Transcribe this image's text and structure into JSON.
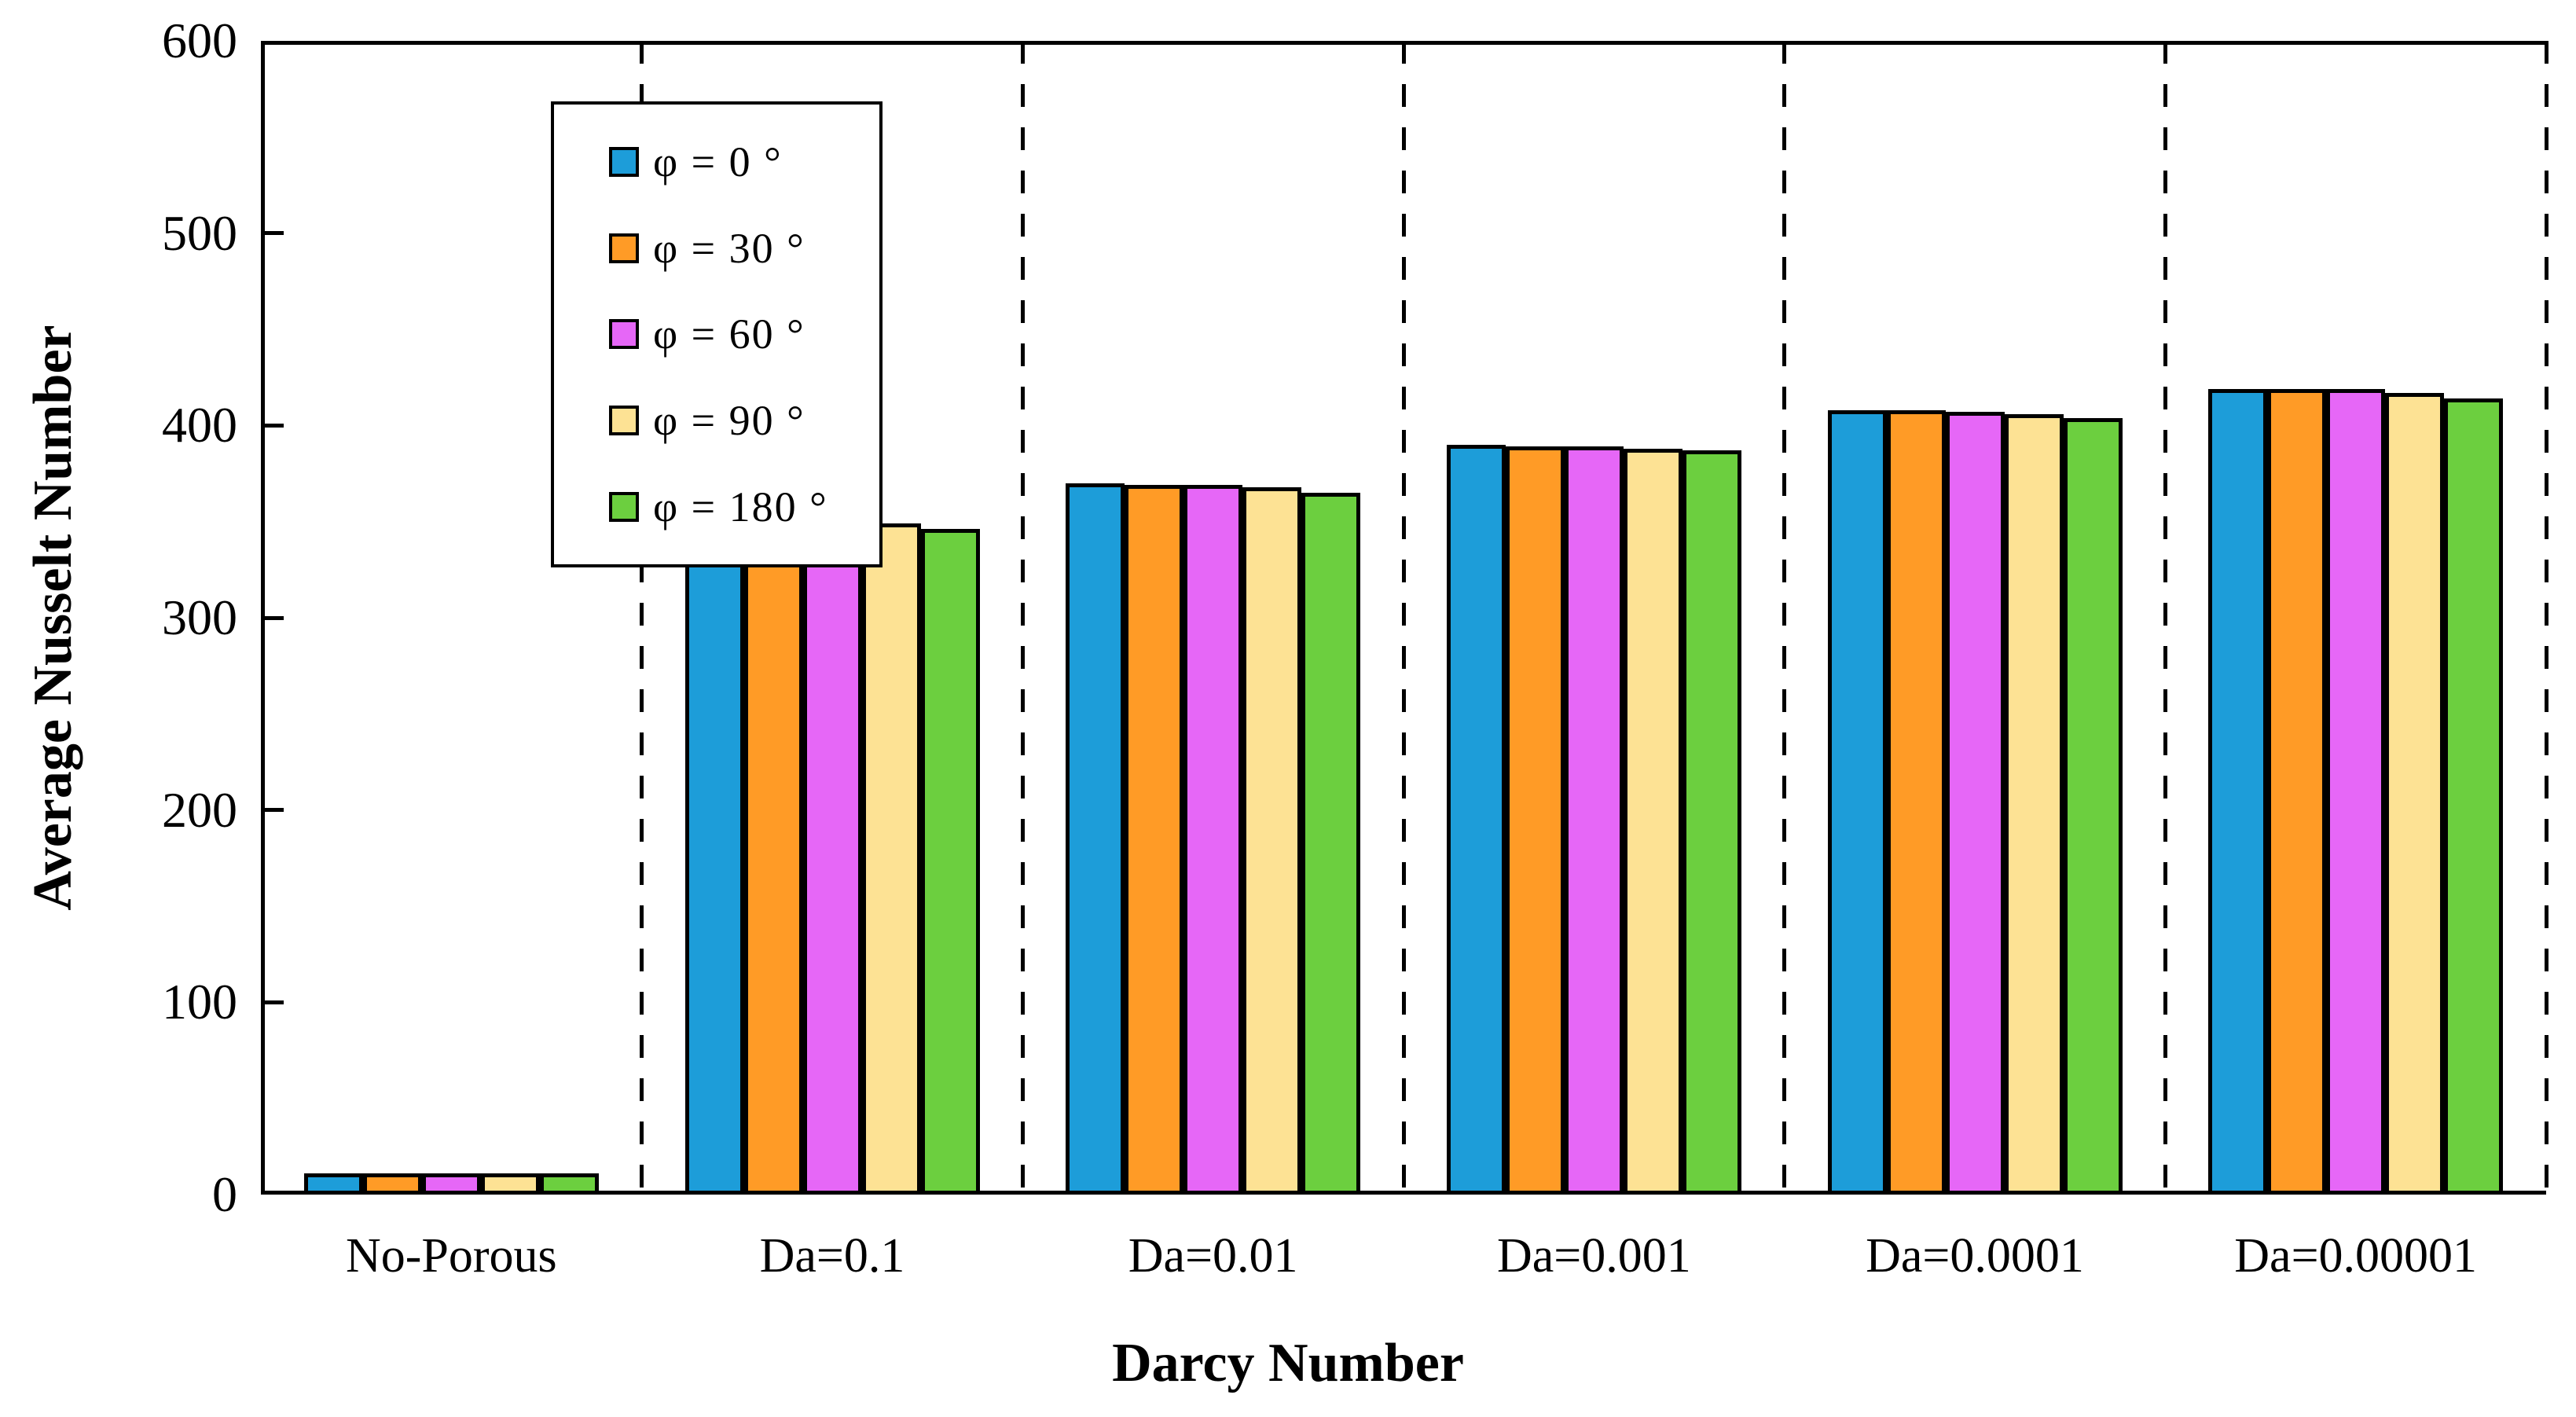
{
  "chart_data": {
    "type": "bar",
    "title": "",
    "xlabel": "Darcy Number",
    "ylabel": "Average Nusselt Number",
    "ylim": [
      0,
      600
    ],
    "yticks": [
      0,
      100,
      200,
      300,
      400,
      500,
      600
    ],
    "grid": false,
    "legend_position": "upper-left-inside",
    "group_separator_style": "dashed-vertical-lines",
    "bar_border_color": "#000000",
    "categories": [
      "No-Porous",
      "Da=0.1",
      "Da=0.01",
      "Da=0.001",
      "Da=0.0001",
      "Da=0.00001"
    ],
    "series": [
      {
        "name": "φ = 0 °",
        "color": "#1D9DD9",
        "values": [
          11,
          351,
          370,
          390,
          408,
          419
        ]
      },
      {
        "name": "φ = 30 °",
        "color": "#FF9B26",
        "values": [
          11,
          350,
          369,
          389,
          408,
          419
        ]
      },
      {
        "name": "φ = 60 °",
        "color": "#E667F7",
        "values": [
          11,
          350,
          369,
          389,
          407,
          419
        ]
      },
      {
        "name": "φ = 90 °",
        "color": "#FDE294",
        "values": [
          11,
          349,
          368,
          388,
          406,
          417
        ]
      },
      {
        "name": "φ = 180 °",
        "color": "#6CCF3F",
        "values": [
          11,
          346,
          365,
          387,
          404,
          414
        ]
      }
    ]
  }
}
